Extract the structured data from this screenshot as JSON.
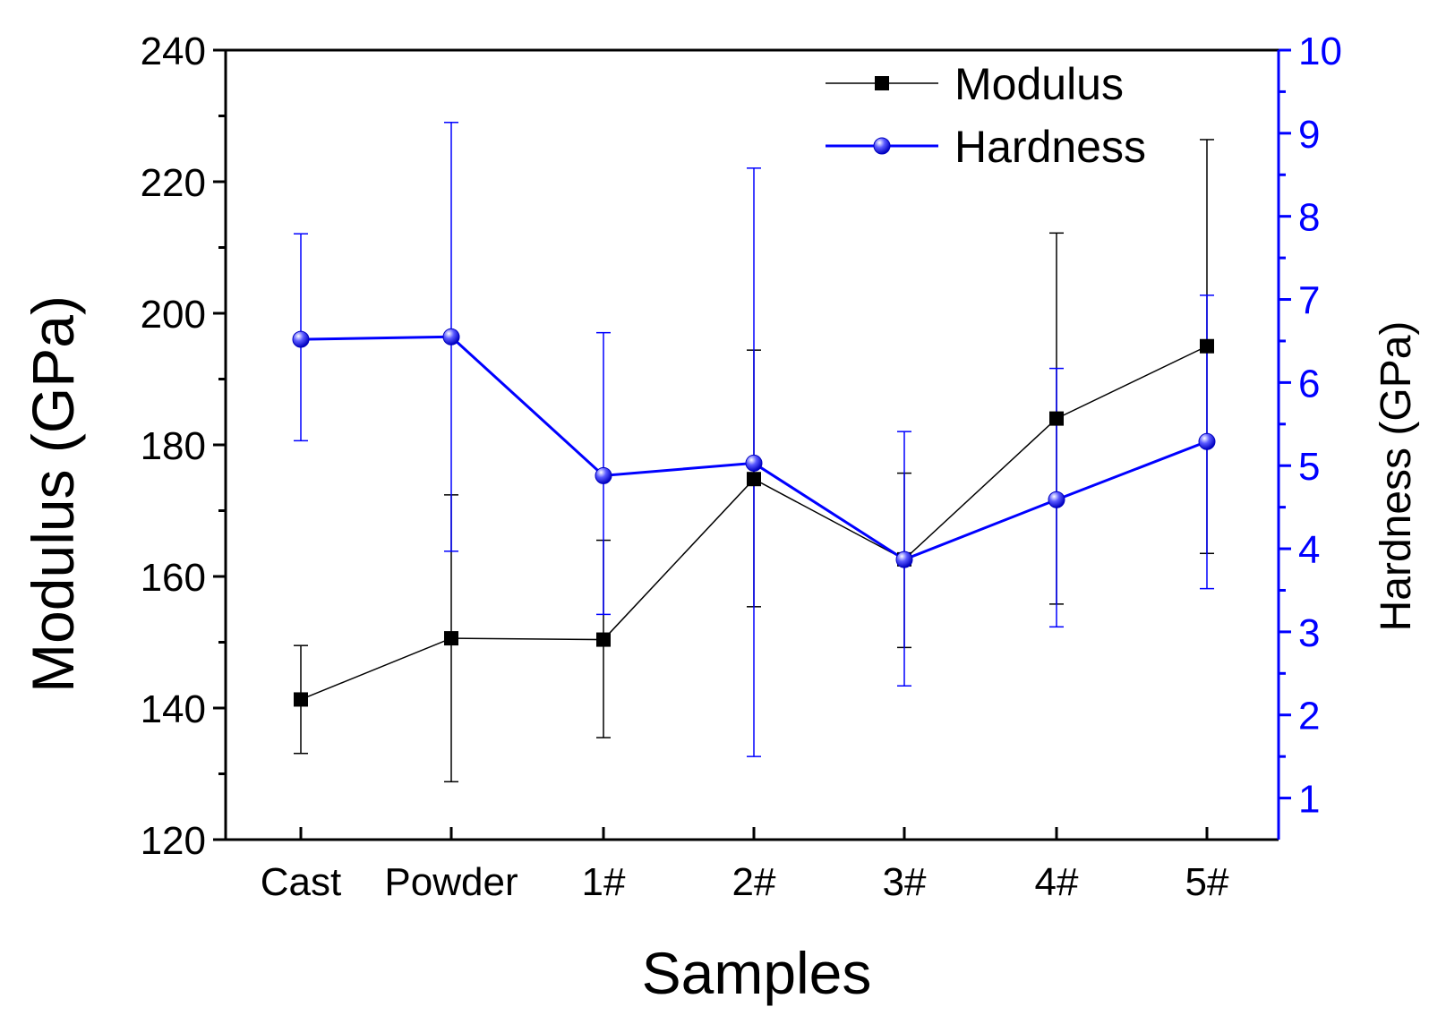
{
  "chart_data": {
    "type": "line",
    "categories": [
      "Cast",
      "Powder",
      "1#",
      "2#",
      "3#",
      "4#",
      "5#"
    ],
    "xlabel": "Samples",
    "ylabel_left": "Modulus (GPa)",
    "ylabel_right": "Hardness (GPa)",
    "ylim_left": [
      120,
      240
    ],
    "ylim_right": [
      0.5,
      10
    ],
    "yticks_left": [
      120,
      140,
      160,
      180,
      200,
      220,
      240
    ],
    "yticks_right": [
      1,
      2,
      3,
      4,
      5,
      6,
      7,
      8,
      9,
      10
    ],
    "series": [
      {
        "name": "Modulus",
        "axis": "left",
        "color": "#000000",
        "marker": "square",
        "values": [
          141.3,
          150.6,
          150.4,
          174.8,
          162.6,
          184.0,
          195.0
        ],
        "error_low": [
          133.1,
          128.8,
          135.5,
          155.4,
          149.2,
          155.8,
          163.5
        ],
        "error_high": [
          149.5,
          172.4,
          165.5,
          194.4,
          175.7,
          212.2,
          226.4
        ]
      },
      {
        "name": "Hardness",
        "axis": "right",
        "color": "#0000ff",
        "marker": "sphere",
        "values": [
          6.52,
          6.55,
          4.88,
          5.03,
          3.87,
          4.59,
          5.29
        ],
        "error_low": [
          5.3,
          3.97,
          3.21,
          1.5,
          2.35,
          3.06,
          3.52
        ],
        "error_high": [
          7.79,
          9.13,
          6.6,
          8.58,
          5.41,
          6.17,
          7.05
        ]
      }
    ]
  },
  "colors": {
    "modulus": "#000000",
    "hardness": "#0000ff"
  }
}
